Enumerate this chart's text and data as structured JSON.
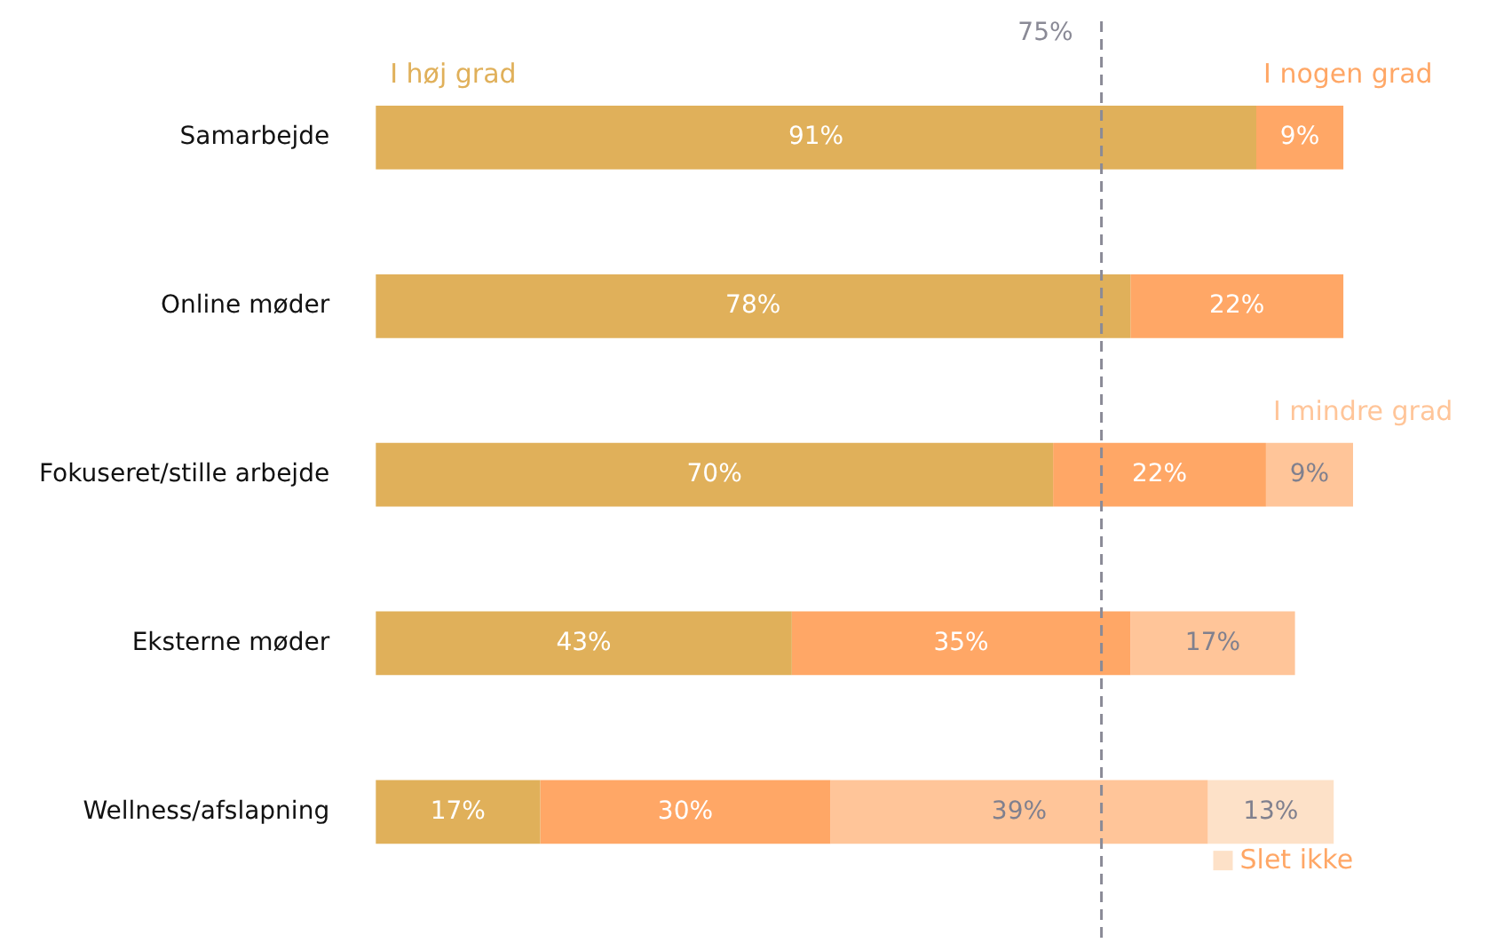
{
  "chart_data": {
    "type": "bar",
    "orientation": "horizontal",
    "stacked": true,
    "categories": [
      "Samarbejde",
      "Online møder",
      "Fokuseret/stille arbejde",
      "Eksterne møder",
      "Wellness/afslapning"
    ],
    "series": [
      {
        "name": "I høj grad",
        "color": "#e0b05a",
        "values": [
          91,
          78,
          70,
          43,
          17
        ],
        "value_labels": [
          "91%",
          "78%",
          "70%",
          "43%",
          "17%"
        ]
      },
      {
        "name": "I nogen grad",
        "color": "#ffa766",
        "values": [
          9,
          22,
          22,
          35,
          30
        ],
        "value_labels": [
          "9%",
          "22%",
          "22%",
          "35%",
          "30%"
        ]
      },
      {
        "name": "I mindre grad",
        "color": "#ffc599",
        "values": [
          null,
          null,
          9,
          17,
          39
        ],
        "value_labels": [
          null,
          null,
          "9%",
          "17%",
          "39%"
        ]
      },
      {
        "name": "Slet ikke",
        "color": "#fde1c8",
        "values": [
          null,
          null,
          null,
          null,
          13
        ],
        "value_labels": [
          null,
          null,
          null,
          null,
          "13%"
        ]
      }
    ],
    "xlim": [
      0,
      101
    ],
    "tick_labels": "y",
    "grid": false,
    "ref_lines": [
      {
        "axis": "x",
        "value": 75,
        "label": "75%",
        "color": "#8a8a96",
        "line_style": "dashed"
      }
    ]
  }
}
